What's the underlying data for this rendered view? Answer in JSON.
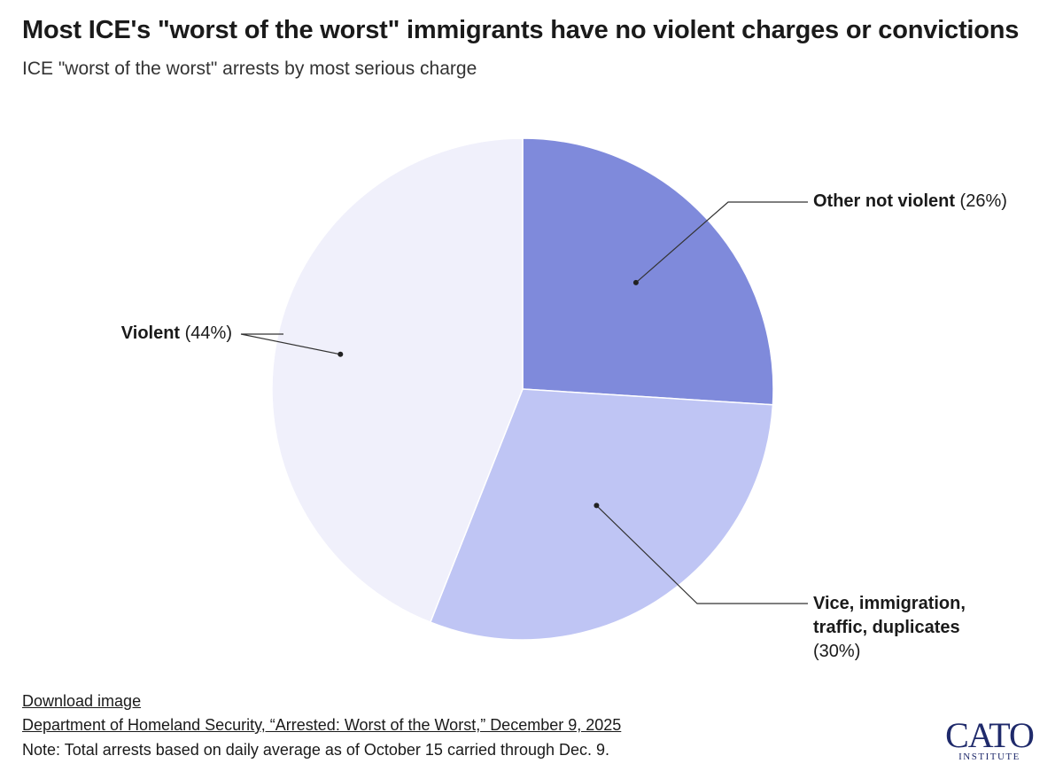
{
  "header": {
    "title": "Most ICE's \"worst of the worst\" immigrants have no violent charges or convictions",
    "subtitle": "ICE \"worst of the worst\" arrests by most serious charge"
  },
  "chart_data": {
    "type": "pie",
    "title": "Most ICE's \"worst of the worst\" immigrants have no violent charges or convictions",
    "subtitle": "ICE \"worst of the worst\" arrests by most serious charge",
    "slices": [
      {
        "name": "Other not violent",
        "value": 26,
        "pct_label": "(26%)",
        "label_lines": [
          "Other not violent"
        ],
        "color": "#7f8adb"
      },
      {
        "name": "Vice, immigration, traffic, duplicates",
        "value": 30,
        "pct_label": "(30%)",
        "label_lines": [
          "Vice, immigration,",
          "traffic, duplicates"
        ],
        "color": "#bfc5f4"
      },
      {
        "name": "Violent",
        "value": 44,
        "pct_label": "(44%)",
        "label_lines": [
          "Violent"
        ],
        "color": "#f0f0fb"
      }
    ]
  },
  "footer": {
    "download_link": "Download image",
    "source_link": "Department of Homeland Security, “Arrested: Worst of the Worst,” December 9, 2025",
    "note": "Note: Total arrests based on daily average as of October 15 carried through Dec. 9."
  },
  "logo": {
    "word": "CATO",
    "sub": "INSTITUTE"
  }
}
